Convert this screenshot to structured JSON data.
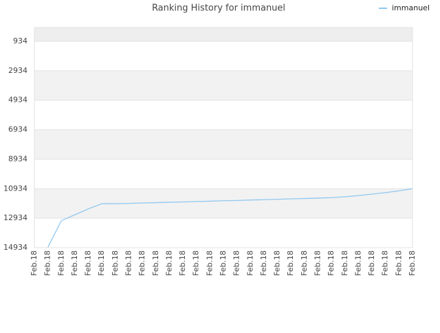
{
  "chart_data": {
    "type": "line",
    "title": "Ranking History for immanuel",
    "categories": [
      "Feb.18",
      "Feb.18",
      "Feb.18",
      "Feb.18",
      "Feb.18",
      "Feb.18",
      "Feb.18",
      "Feb.18",
      "Feb.18",
      "Feb.18",
      "Feb.18",
      "Feb.18",
      "Feb.18",
      "Feb.18",
      "Feb.18",
      "Feb.18",
      "Feb.18",
      "Feb.18",
      "Feb.18",
      "Feb.18",
      "Feb.18",
      "Feb.18",
      "Feb.18",
      "Feb.18",
      "Feb.18",
      "Feb.18",
      "Feb.18",
      "Feb.18",
      "Feb.18"
    ],
    "series": [
      {
        "name": "immanuel",
        "color": "#90c8f0",
        "values": [
          null,
          14900,
          13100,
          12700,
          12300,
          11950,
          11950,
          11930,
          11900,
          11880,
          11850,
          11830,
          11800,
          11780,
          11750,
          11730,
          11700,
          11680,
          11650,
          11620,
          11600,
          11570,
          11540,
          11480,
          11400,
          11300,
          11200,
          11080,
          10934
        ]
      }
    ],
    "ylim": [
      14934,
      0
    ],
    "yticks": [
      934,
      2934,
      4934,
      6934,
      8934,
      10934,
      12934,
      14934
    ],
    "grid": true,
    "legend": "top-right"
  }
}
